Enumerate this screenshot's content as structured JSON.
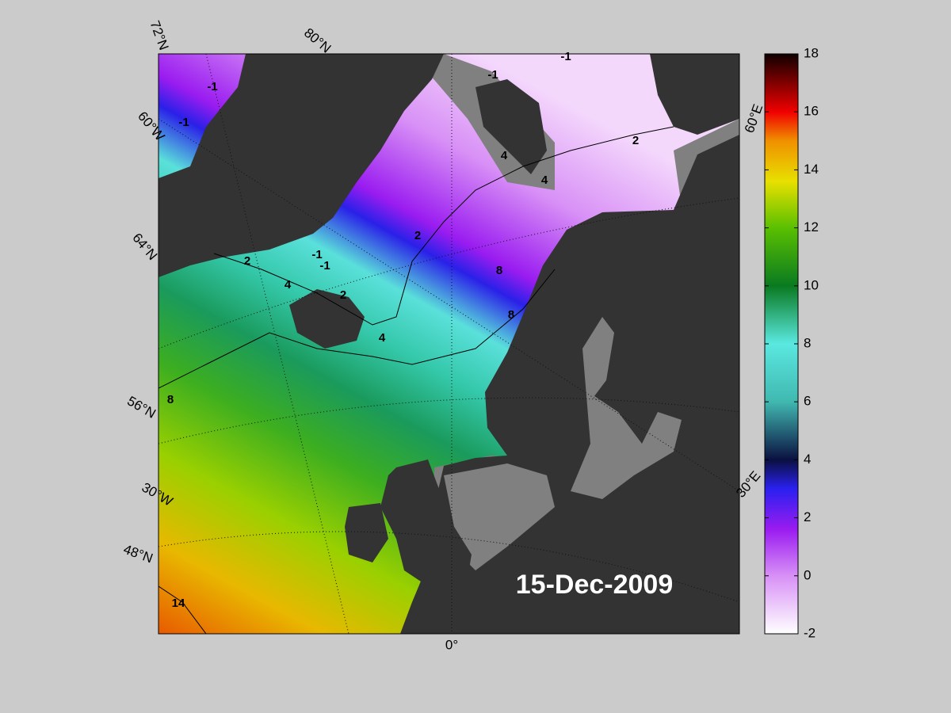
{
  "map": {
    "date": "15-Dec-2009",
    "graticule_labels": [
      "72°N",
      "80°N",
      "60°W",
      "64°N",
      "56°N",
      "30°W",
      "48°N",
      "0°",
      "60°E",
      "30°E"
    ],
    "contour_labels": [
      -1,
      -1,
      -1,
      -1,
      -1,
      -1,
      2,
      2,
      2,
      2,
      4,
      4,
      4,
      4,
      8,
      8,
      8,
      14
    ],
    "colorbar": {
      "lim": [
        -2,
        18
      ],
      "ticks": [
        -2,
        0,
        2,
        4,
        6,
        8,
        10,
        12,
        14,
        16,
        18
      ]
    }
  }
}
